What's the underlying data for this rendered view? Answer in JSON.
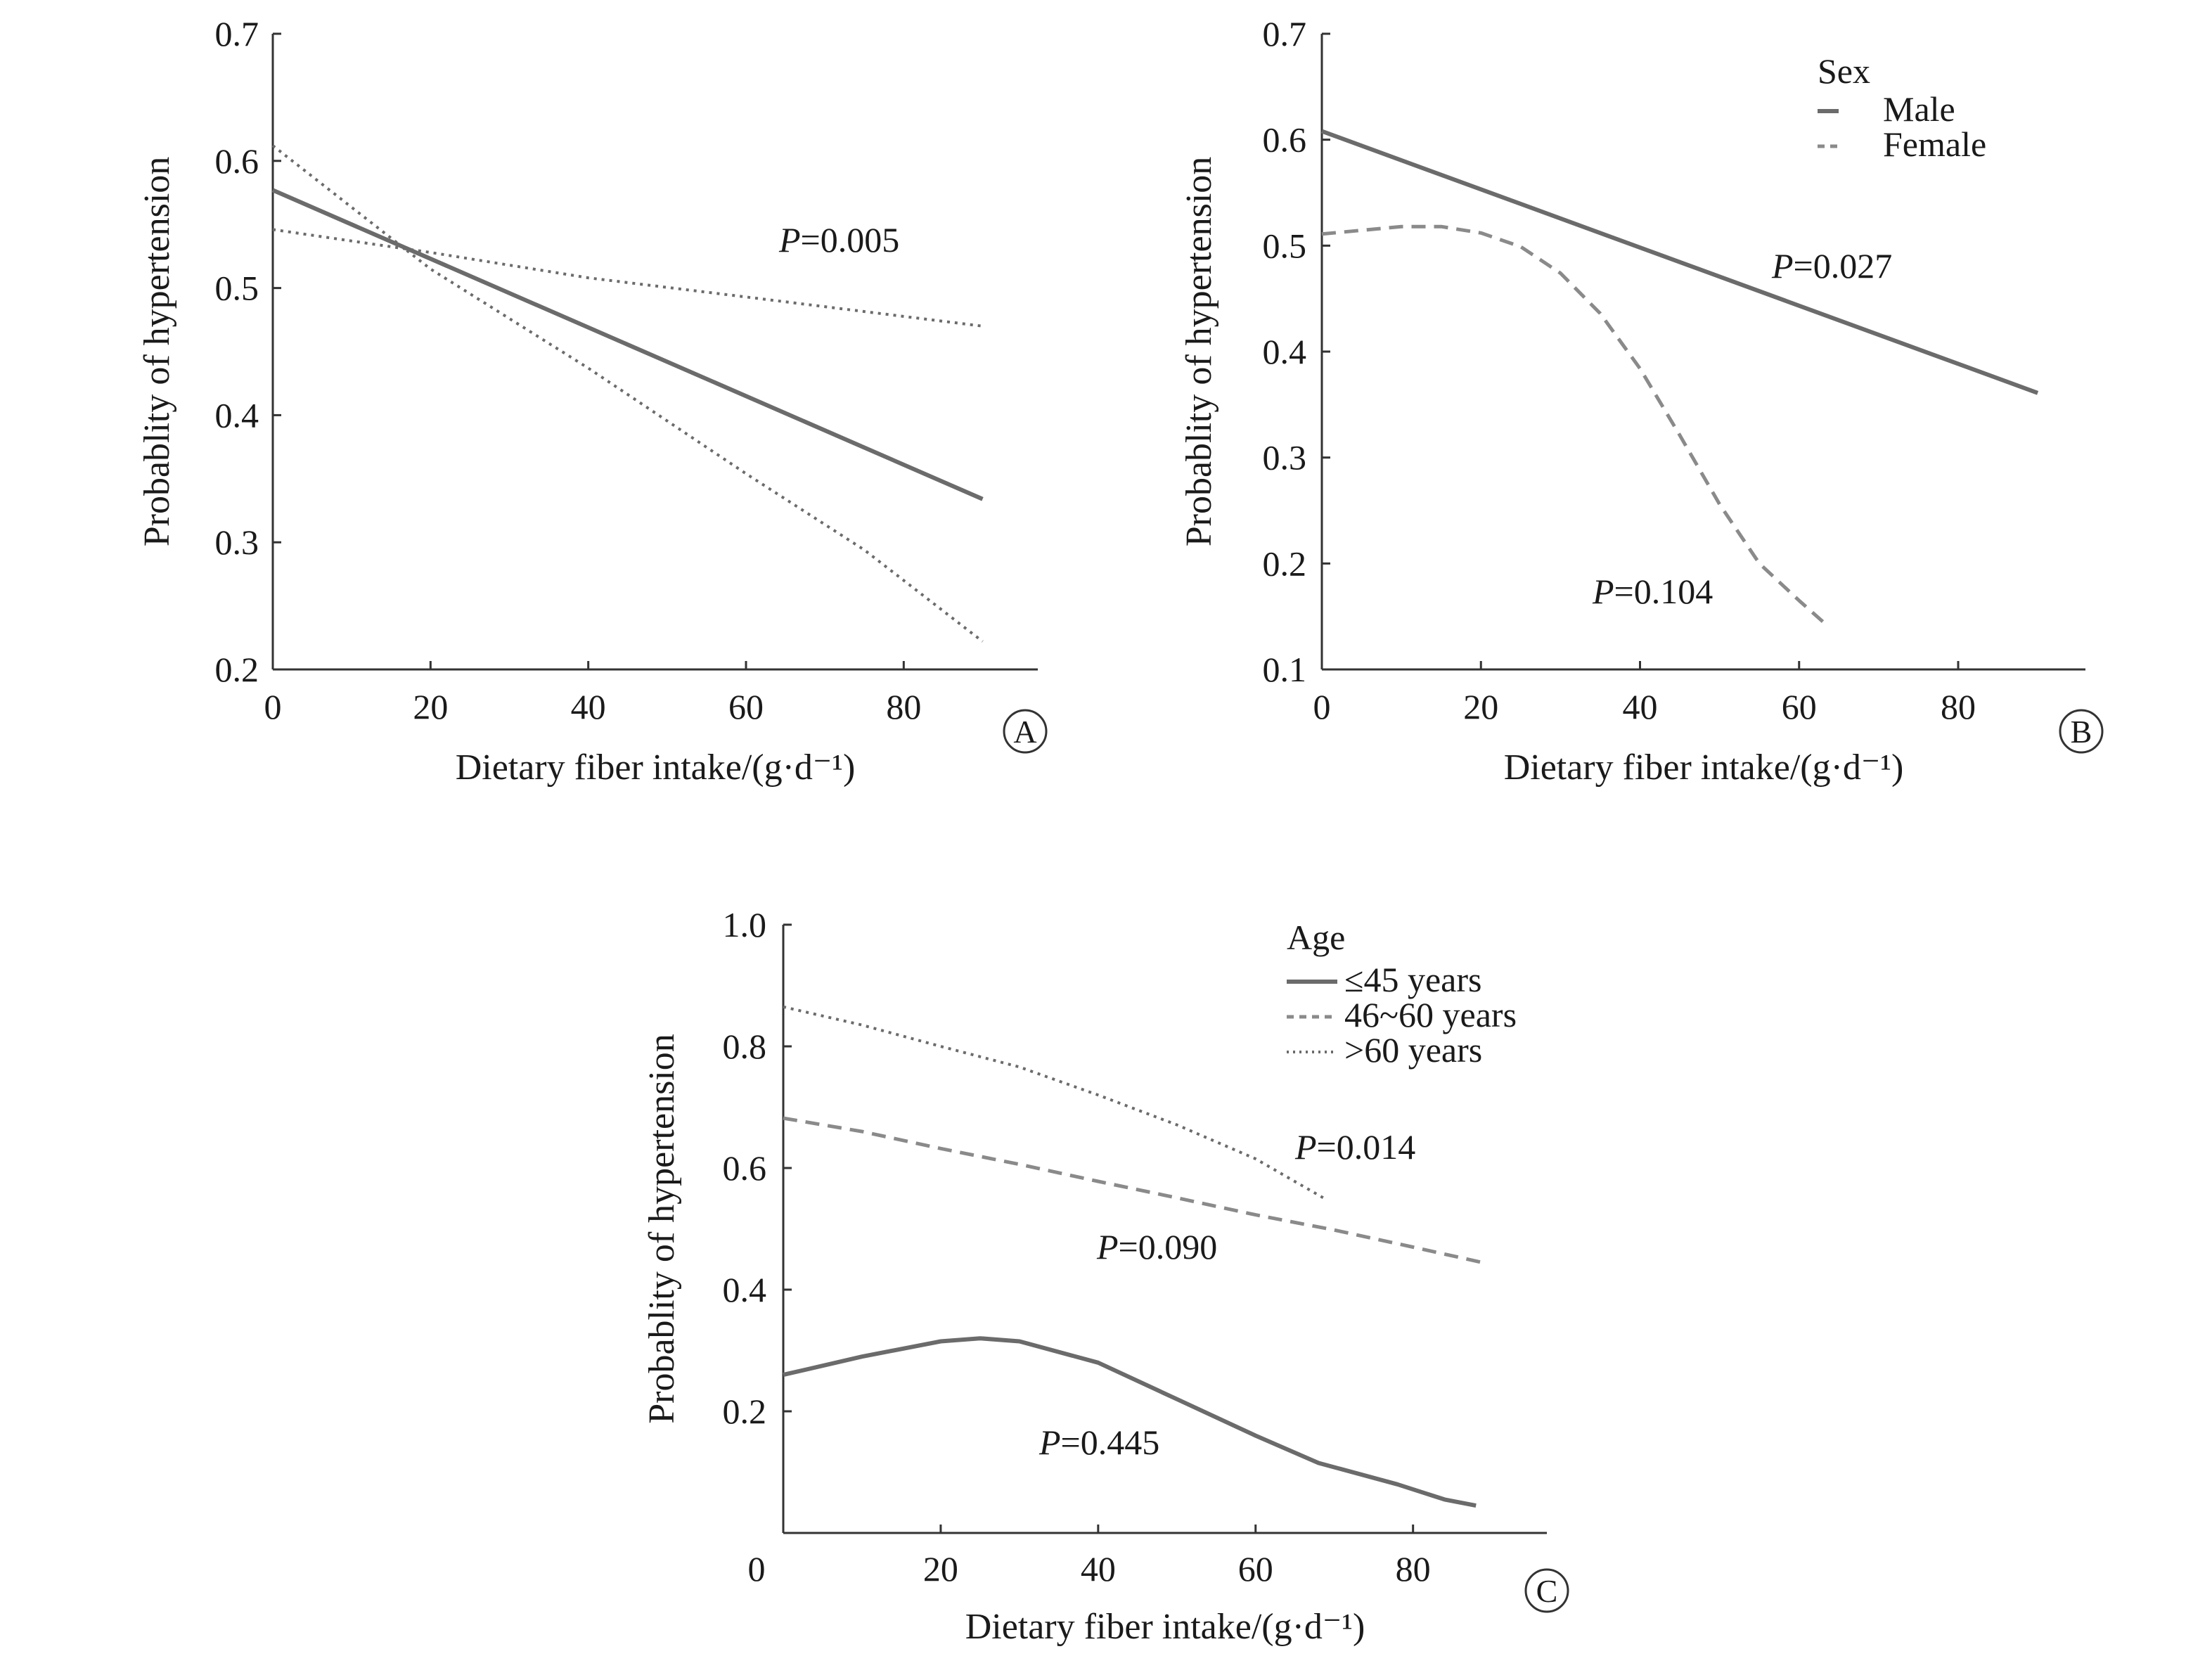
{
  "chart_data": [
    {
      "type": "line",
      "panel": "A",
      "xlabel": "Dietary fiber intake/(g·d⁻¹)",
      "ylabel": "Probablity of hypertension",
      "xlim": [
        0,
        97
      ],
      "ylim": [
        0.2,
        0.7
      ],
      "xticks": [
        "0",
        "20",
        "40",
        "60",
        "80"
      ],
      "yticks": [
        "0.2",
        "0.3",
        "0.4",
        "0.5",
        "0.6",
        "0.7"
      ],
      "xtick_values": [
        0,
        20,
        40,
        60,
        80
      ],
      "ytick_values": [
        0.2,
        0.3,
        0.4,
        0.5,
        0.6,
        0.7
      ],
      "series": [
        {
          "style": "solid",
          "color": "#6b6b6b",
          "x": [
            0,
            90
          ],
          "y": [
            0.577,
            0.334
          ]
        },
        {
          "style": "dotted",
          "color": "#6b6b6b",
          "x": [
            0,
            20,
            40,
            60,
            75,
            90
          ],
          "y": [
            0.612,
            0.515,
            0.437,
            0.354,
            0.294,
            0.222
          ]
        },
        {
          "style": "dotted",
          "color": "#6b6b6b",
          "x": [
            0,
            20,
            40,
            60,
            90
          ],
          "y": [
            0.546,
            0.528,
            0.508,
            0.493,
            0.47
          ]
        }
      ],
      "annotations": [
        {
          "italic": "P",
          "text": "=0.005",
          "x": 65,
          "y": 0.57
        }
      ],
      "panel_label": "A"
    },
    {
      "type": "line",
      "panel": "B",
      "xlabel": "Dietary fiber intake/(g·d⁻¹)",
      "ylabel": "Probablity of hypertension",
      "xlim": [
        0,
        96
      ],
      "ylim": [
        0.1,
        0.7
      ],
      "xticks": [
        "0",
        "20",
        "40",
        "60",
        "80"
      ],
      "yticks": [
        "0.1",
        "0.2",
        "0.3",
        "0.4",
        "0.5",
        "0.6",
        "0.7"
      ],
      "xtick_values": [
        0,
        20,
        40,
        60,
        80
      ],
      "ytick_values": [
        0.1,
        0.2,
        0.3,
        0.4,
        0.5,
        0.6,
        0.7
      ],
      "legend": {
        "title": "Sex",
        "position": "top-right"
      },
      "series": [
        {
          "name": "Male",
          "style": "solid",
          "color": "#6b6b6b",
          "x": [
            0,
            90
          ],
          "y": [
            0.608,
            0.361
          ]
        },
        {
          "name": "Female",
          "style": "dashed",
          "color": "#8a8a8a",
          "x": [
            0,
            10,
            15,
            20,
            25,
            30,
            35,
            40,
            45,
            50,
            55,
            60,
            63
          ],
          "y": [
            0.511,
            0.518,
            0.518,
            0.512,
            0.499,
            0.474,
            0.436,
            0.384,
            0.321,
            0.256,
            0.2,
            0.165,
            0.145
          ]
        }
      ],
      "annotations": [
        {
          "italic": "P",
          "text": "=0.027",
          "x": 58,
          "y": 0.38
        },
        {
          "italic": "P",
          "text": "=0.104",
          "x": 35,
          "y": 0.165
        }
      ],
      "panel_label": "B"
    },
    {
      "type": "line",
      "panel": "C",
      "xlabel": "Dietary fiber intake/(g·d⁻¹)",
      "ylabel": "Probablity of hypertension",
      "xlim": [
        0,
        97
      ],
      "ylim": [
        0,
        1.0
      ],
      "xticks": [
        "20",
        "40",
        "60",
        "80"
      ],
      "yticks": [
        "0.2",
        "0.4",
        "0.6",
        "0.8",
        "1.0"
      ],
      "xtick_values": [
        20,
        40,
        60,
        80
      ],
      "ytick_values": [
        0.2,
        0.4,
        0.6,
        0.8,
        1.0
      ],
      "origin_label": "0",
      "legend": {
        "title": "Age",
        "position": "top-right"
      },
      "series": [
        {
          "name": "≤45 years",
          "style": "solid",
          "color": "#6b6b6b",
          "x": [
            0,
            10,
            20,
            25,
            30,
            40,
            50,
            60,
            68,
            78,
            84,
            88
          ],
          "y": [
            0.26,
            0.29,
            0.315,
            0.32,
            0.315,
            0.28,
            0.22,
            0.16,
            0.115,
            0.08,
            0.055,
            0.045
          ]
        },
        {
          "name": "46~60 years",
          "style": "dashed",
          "color": "#8a8a8a",
          "x": [
            0,
            10,
            20,
            30,
            40,
            50,
            60,
            70,
            80,
            89
          ],
          "y": [
            0.682,
            0.66,
            0.632,
            0.606,
            0.578,
            0.551,
            0.523,
            0.498,
            0.47,
            0.444
          ]
        },
        {
          "name": ">60 years",
          "style": "dotted",
          "color": "#6b6b6b",
          "x": [
            0,
            10,
            20,
            30,
            40,
            50,
            60,
            69
          ],
          "y": [
            0.865,
            0.835,
            0.8,
            0.766,
            0.72,
            0.671,
            0.615,
            0.548
          ]
        }
      ],
      "annotations": [
        {
          "italic": "P",
          "text": "=0.014",
          "x": 66,
          "y": 0.63
        },
        {
          "italic": "P",
          "text": "=0.090",
          "x": 40,
          "y": 0.45
        },
        {
          "italic": "P",
          "text": "=0.445",
          "x": 33,
          "y": 0.145
        }
      ],
      "panel_label": "C"
    }
  ]
}
